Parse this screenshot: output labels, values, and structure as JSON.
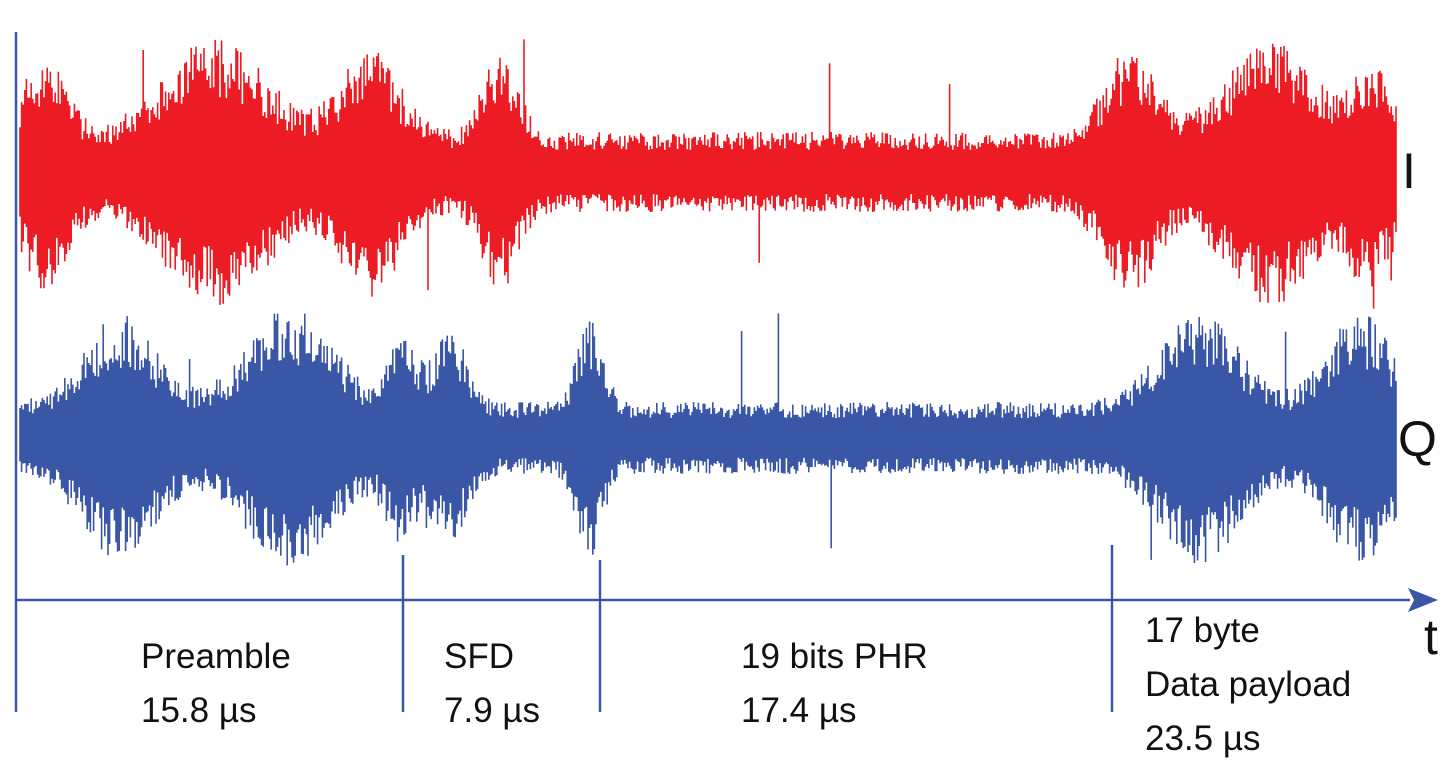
{
  "signal": {
    "i_label": "I",
    "q_label": "Q",
    "time_label": "t",
    "i_color": "#ed1c24",
    "q_color": "#3a56a6",
    "axis_color": "#3a56a6"
  },
  "segments": [
    {
      "name": "Preamble",
      "duration": "15.8 µs"
    },
    {
      "name": "SFD",
      "duration": "7.9 µs"
    },
    {
      "name": "19 bits PHR",
      "duration": "17.4 µs"
    },
    {
      "name_line1": "17 byte",
      "name_line2": "Data payload",
      "duration": "23.5 µs"
    }
  ]
}
